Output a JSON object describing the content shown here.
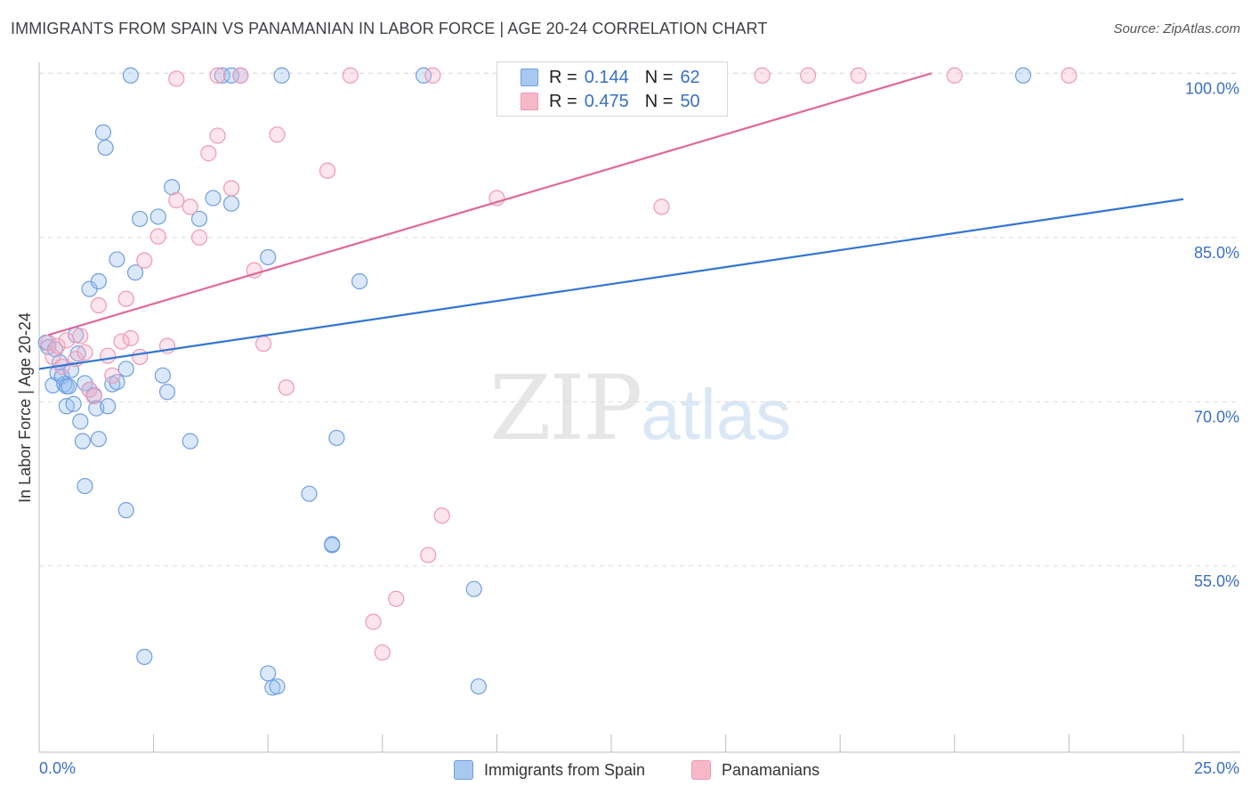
{
  "header": {
    "title": "IMMIGRANTS FROM SPAIN VS PANAMANIAN IN LABOR FORCE | AGE 20-24 CORRELATION CHART",
    "source": "Source: ZipAtlas.com"
  },
  "watermark": {
    "zip": "ZIP",
    "atlas": "atlas"
  },
  "legend": {
    "rows": [
      {
        "r_label": "R =",
        "r_value": "0.144",
        "n_label": "N =",
        "n_value": "62",
        "color": "#a9c8f0"
      },
      {
        "r_label": "R =",
        "r_value": "0.475",
        "n_label": "N =",
        "n_value": "50",
        "color": "#f6b8c8"
      }
    ]
  },
  "bottom_legend": {
    "spain": "Immigrants from Spain",
    "panama": "Panamanians"
  },
  "colors": {
    "spain_fill": "rgba(150,190,240,0.35)",
    "spain_stroke": "#6f9fe0",
    "spain_line": "#3275d3",
    "panama_fill": "rgba(246,180,200,0.35)",
    "panama_stroke": "#ee99b4",
    "panama_line": "#e0689a",
    "axis_label": "#3a6fc6",
    "grid": "#dcdcdc"
  },
  "chart_data": {
    "type": "scatter",
    "title": "IMMIGRANTS FROM SPAIN VS PANAMANIAN IN LABOR FORCE | AGE 20-24 CORRELATION CHART",
    "xlabel": "",
    "ylabel": "In Labor Force | Age 20-24",
    "xlim": [
      0,
      25
    ],
    "ylim": [
      38,
      101
    ],
    "x_tick_labels": [
      "0.0%",
      "25.0%"
    ],
    "y_ticks": [
      55,
      70,
      85,
      100
    ],
    "y_tick_labels": [
      "55.0%",
      "70.0%",
      "85.0%",
      "100.0%"
    ],
    "grid": true,
    "series": [
      {
        "name": "Immigrants from Spain",
        "R": 0.144,
        "N": 62,
        "trend": {
          "x": [
            0,
            25
          ],
          "y": [
            73.0,
            88.5
          ]
        },
        "points": [
          [
            0.15,
            75.4
          ],
          [
            0.2,
            75.0
          ],
          [
            0.3,
            71.5
          ],
          [
            0.35,
            74.8
          ],
          [
            0.4,
            72.6
          ],
          [
            0.45,
            73.6
          ],
          [
            0.5,
            72.3
          ],
          [
            0.55,
            71.6
          ],
          [
            0.6,
            71.4
          ],
          [
            0.6,
            69.6
          ],
          [
            0.65,
            71.4
          ],
          [
            0.7,
            72.9
          ],
          [
            0.75,
            69.8
          ],
          [
            0.8,
            76.1
          ],
          [
            0.85,
            74.4
          ],
          [
            0.9,
            68.2
          ],
          [
            0.95,
            66.4
          ],
          [
            1.0,
            71.7
          ],
          [
            1.0,
            62.3
          ],
          [
            1.1,
            71.1
          ],
          [
            1.1,
            80.3
          ],
          [
            1.2,
            70.6
          ],
          [
            1.25,
            69.4
          ],
          [
            1.3,
            81.0
          ],
          [
            1.3,
            66.6
          ],
          [
            1.4,
            94.6
          ],
          [
            1.45,
            93.2
          ],
          [
            1.5,
            69.6
          ],
          [
            1.6,
            71.6
          ],
          [
            1.7,
            83.0
          ],
          [
            1.7,
            71.8
          ],
          [
            1.9,
            60.1
          ],
          [
            1.9,
            73.0
          ],
          [
            2.1,
            81.8
          ],
          [
            2.2,
            86.7
          ],
          [
            2.3,
            46.7
          ],
          [
            2.6,
            86.9
          ],
          [
            2.7,
            72.4
          ],
          [
            2.8,
            70.9
          ],
          [
            2.9,
            89.6
          ],
          [
            3.3,
            66.4
          ],
          [
            3.5,
            86.7
          ],
          [
            3.8,
            88.6
          ],
          [
            4.2,
            88.1
          ],
          [
            5.0,
            83.2
          ],
          [
            5.0,
            45.2
          ],
          [
            5.1,
            43.9
          ],
          [
            5.2,
            44.0
          ],
          [
            5.9,
            61.6
          ],
          [
            6.4,
            56.9
          ],
          [
            6.4,
            57.0
          ],
          [
            6.5,
            66.7
          ],
          [
            7.0,
            81.0
          ],
          [
            9.5,
            52.9
          ],
          [
            9.6,
            44.0
          ],
          [
            2.0,
            99.8
          ],
          [
            4.0,
            99.8
          ],
          [
            4.2,
            99.8
          ],
          [
            4.4,
            99.8
          ],
          [
            5.3,
            99.8
          ],
          [
            8.4,
            99.8
          ],
          [
            21.5,
            99.8
          ]
        ]
      },
      {
        "name": "Panamanians",
        "R": 0.475,
        "N": 50,
        "trend": {
          "x": [
            0.2,
            19.5
          ],
          "y": [
            76.1,
            100.0
          ]
        },
        "points": [
          [
            0.2,
            75.4
          ],
          [
            0.3,
            74.1
          ],
          [
            0.4,
            75.1
          ],
          [
            0.5,
            73.2
          ],
          [
            0.6,
            75.6
          ],
          [
            0.8,
            73.9
          ],
          [
            0.9,
            76.0
          ],
          [
            1.0,
            74.5
          ],
          [
            1.1,
            71.1
          ],
          [
            1.2,
            70.5
          ],
          [
            1.3,
            78.8
          ],
          [
            1.5,
            74.2
          ],
          [
            1.6,
            72.4
          ],
          [
            1.8,
            75.5
          ],
          [
            1.9,
            79.4
          ],
          [
            2.0,
            75.8
          ],
          [
            2.2,
            74.1
          ],
          [
            2.3,
            82.9
          ],
          [
            2.6,
            85.1
          ],
          [
            2.8,
            75.1
          ],
          [
            3.0,
            88.4
          ],
          [
            3.3,
            87.8
          ],
          [
            3.5,
            85.0
          ],
          [
            3.7,
            92.7
          ],
          [
            3.9,
            94.3
          ],
          [
            4.2,
            89.5
          ],
          [
            4.7,
            82.0
          ],
          [
            4.9,
            75.3
          ],
          [
            5.2,
            94.4
          ],
          [
            5.4,
            71.3
          ],
          [
            6.3,
            91.1
          ],
          [
            7.3,
            49.9
          ],
          [
            7.5,
            47.1
          ],
          [
            7.8,
            52.0
          ],
          [
            8.5,
            56.0
          ],
          [
            8.8,
            59.6
          ],
          [
            10.0,
            88.6
          ],
          [
            13.6,
            87.8
          ],
          [
            3.0,
            99.5
          ],
          [
            3.9,
            99.8
          ],
          [
            4.4,
            99.8
          ],
          [
            6.8,
            99.8
          ],
          [
            8.6,
            99.8
          ],
          [
            11.8,
            99.8
          ],
          [
            14.2,
            99.8
          ],
          [
            15.8,
            99.8
          ],
          [
            16.8,
            99.8
          ],
          [
            17.9,
            99.8
          ],
          [
            20.0,
            99.8
          ],
          [
            22.5,
            99.8
          ]
        ]
      }
    ]
  }
}
